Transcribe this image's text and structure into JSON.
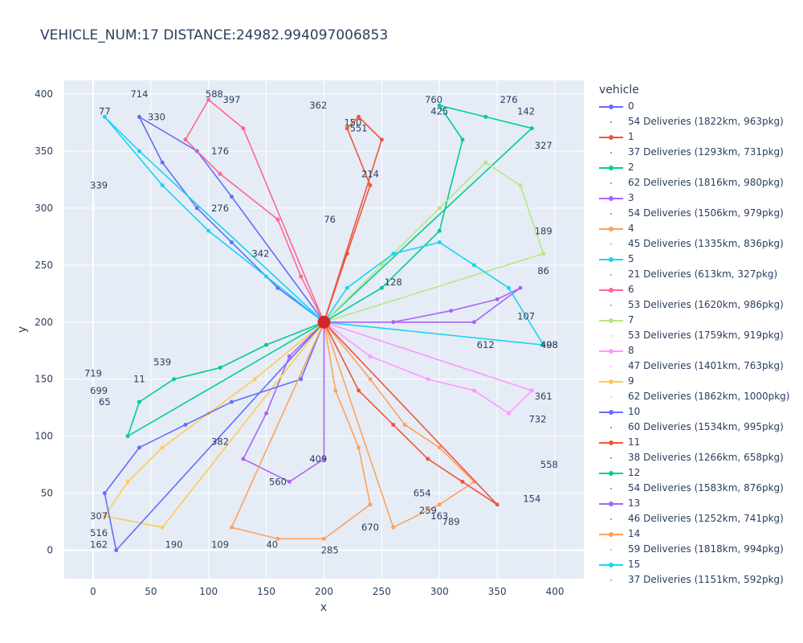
{
  "title": "VEHICLE_NUM:17 DISTANCE:24982.994097006853",
  "legend": {
    "title": "vehicle",
    "entries": [
      {
        "label": "0",
        "kind": "line",
        "color": "#636efa"
      },
      {
        "label": "54 Deliveries (1822km, 963pkg)",
        "kind": "dot",
        "color": "#636efa"
      },
      {
        "label": "1",
        "kind": "line",
        "color": "#ef553b"
      },
      {
        "label": "37 Deliveries (1293km, 731pkg)",
        "kind": "dot",
        "color": "#ef553b"
      },
      {
        "label": "2",
        "kind": "line",
        "color": "#00cc96"
      },
      {
        "label": "62 Deliveries (1816km, 980pkg)",
        "kind": "dot",
        "color": "#00cc96"
      },
      {
        "label": "3",
        "kind": "line",
        "color": "#ab63fa"
      },
      {
        "label": "54 Deliveries (1506km, 979pkg)",
        "kind": "dot",
        "color": "#ab63fa"
      },
      {
        "label": "4",
        "kind": "line",
        "color": "#ffa15a"
      },
      {
        "label": "45 Deliveries (1335km, 836pkg)",
        "kind": "dot",
        "color": "#ffa15a"
      },
      {
        "label": "5",
        "kind": "line",
        "color": "#19d3f3"
      },
      {
        "label": "21 Deliveries (613km, 327pkg)",
        "kind": "dot",
        "color": "#19d3f3"
      },
      {
        "label": "6",
        "kind": "line",
        "color": "#ff6692"
      },
      {
        "label": "53 Deliveries (1620km, 986pkg)",
        "kind": "dot",
        "color": "#ff6692"
      },
      {
        "label": "7",
        "kind": "line",
        "color": "#b6e880"
      },
      {
        "label": "53 Deliveries (1759km, 919pkg)",
        "kind": "dot",
        "color": "#b6e880"
      },
      {
        "label": "8",
        "kind": "line",
        "color": "#ff97ff"
      },
      {
        "label": "47 Deliveries (1401km, 763pkg)",
        "kind": "dot",
        "color": "#ff97ff"
      },
      {
        "label": "9",
        "kind": "line",
        "color": "#fecb52"
      },
      {
        "label": "62 Deliveries (1862km, 1000pkg)",
        "kind": "dot",
        "color": "#fecb52"
      },
      {
        "label": "10",
        "kind": "line",
        "color": "#636efa"
      },
      {
        "label": "60 Deliveries (1534km, 995pkg)",
        "kind": "dot",
        "color": "#636efa"
      },
      {
        "label": "11",
        "kind": "line",
        "color": "#ef553b"
      },
      {
        "label": "38 Deliveries (1266km, 658pkg)",
        "kind": "dot",
        "color": "#ef553b"
      },
      {
        "label": "12",
        "kind": "line",
        "color": "#00cc96"
      },
      {
        "label": "54 Deliveries (1583km, 876pkg)",
        "kind": "dot",
        "color": "#00cc96"
      },
      {
        "label": "13",
        "kind": "line",
        "color": "#ab63fa"
      },
      {
        "label": "46 Deliveries (1252km, 741pkg)",
        "kind": "dot",
        "color": "#ab63fa"
      },
      {
        "label": "14",
        "kind": "line",
        "color": "#ffa15a"
      },
      {
        "label": "59 Deliveries (1818km, 994pkg)",
        "kind": "dot",
        "color": "#ffa15a"
      },
      {
        "label": "15",
        "kind": "line",
        "color": "#19d3f3"
      },
      {
        "label": "37 Deliveries (1151km, 592pkg)",
        "kind": "dot",
        "color": "#19d3f3"
      }
    ]
  },
  "chart_data": {
    "type": "line",
    "xlabel": "x",
    "ylabel": "y",
    "xlim": [
      -25,
      425
    ],
    "ylim": [
      -25,
      412
    ],
    "x_ticks": [
      0,
      50,
      100,
      150,
      200,
      250,
      300,
      350,
      400
    ],
    "y_ticks": [
      0,
      50,
      100,
      150,
      200,
      250,
      300,
      350,
      400
    ],
    "grid": true,
    "depot": [
      200,
      200
    ],
    "series": [
      {
        "name": "0",
        "color": "#636efa",
        "points": [
          [
            200,
            200
          ],
          [
            160,
            230
          ],
          [
            120,
            270
          ],
          [
            90,
            300
          ],
          [
            60,
            340
          ],
          [
            40,
            380
          ],
          [
            90,
            350
          ],
          [
            120,
            310
          ],
          [
            200,
            200
          ]
        ],
        "labels": [
          [
            "714",
            40,
            400
          ],
          [
            "330",
            55,
            380
          ],
          [
            "276",
            110,
            300
          ],
          [
            "342",
            145,
            260
          ]
        ]
      },
      {
        "name": "1",
        "color": "#ef553b",
        "points": [
          [
            200,
            200
          ],
          [
            220,
            260
          ],
          [
            240,
            320
          ],
          [
            220,
            370
          ],
          [
            230,
            380
          ],
          [
            250,
            360
          ],
          [
            200,
            200
          ]
        ],
        "labels": [
          [
            "150",
            225,
            375
          ],
          [
            "551",
            230,
            370
          ],
          [
            "76",
            205,
            290
          ],
          [
            "214",
            240,
            330
          ]
        ]
      },
      {
        "name": "2",
        "color": "#00cc96",
        "points": [
          [
            200,
            200
          ],
          [
            250,
            230
          ],
          [
            300,
            280
          ],
          [
            320,
            360
          ],
          [
            300,
            390
          ],
          [
            340,
            380
          ],
          [
            380,
            370
          ],
          [
            200,
            200
          ]
        ],
        "labels": [
          [
            "760",
            295,
            395
          ],
          [
            "425",
            300,
            385
          ],
          [
            "276",
            360,
            395
          ],
          [
            "142",
            375,
            385
          ]
        ]
      },
      {
        "name": "3",
        "color": "#ab63fa",
        "points": [
          [
            200,
            200
          ],
          [
            170,
            170
          ],
          [
            150,
            120
          ],
          [
            130,
            80
          ],
          [
            170,
            60
          ],
          [
            200,
            80
          ],
          [
            200,
            200
          ]
        ],
        "labels": [
          [
            "409",
            195,
            80
          ],
          [
            "560",
            160,
            60
          ],
          [
            "382",
            110,
            95
          ]
        ]
      },
      {
        "name": "4",
        "color": "#ffa15a",
        "points": [
          [
            200,
            200
          ],
          [
            240,
            150
          ],
          [
            270,
            110
          ],
          [
            300,
            90
          ],
          [
            330,
            60
          ],
          [
            300,
            40
          ],
          [
            260,
            20
          ],
          [
            200,
            200
          ]
        ],
        "labels": [
          [
            "654",
            285,
            50
          ],
          [
            "259",
            290,
            35
          ],
          [
            "163",
            300,
            30
          ],
          [
            "789",
            310,
            25
          ]
        ]
      },
      {
        "name": "5",
        "color": "#19d3f3",
        "points": [
          [
            200,
            200
          ],
          [
            150,
            240
          ],
          [
            100,
            280
          ],
          [
            60,
            320
          ],
          [
            10,
            380
          ],
          [
            40,
            350
          ],
          [
            200,
            200
          ]
        ],
        "labels": [
          [
            "77",
            10,
            385
          ],
          [
            "339",
            5,
            320
          ]
        ]
      },
      {
        "name": "6",
        "color": "#ff6692",
        "points": [
          [
            200,
            200
          ],
          [
            180,
            240
          ],
          [
            160,
            290
          ],
          [
            110,
            330
          ],
          [
            80,
            360
          ],
          [
            100,
            395
          ],
          [
            130,
            370
          ],
          [
            200,
            200
          ]
        ],
        "labels": [
          [
            "588",
            105,
            400
          ],
          [
            "397",
            120,
            395
          ],
          [
            "176",
            110,
            350
          ]
        ]
      },
      {
        "name": "7",
        "color": "#b6e880",
        "points": [
          [
            200,
            200
          ],
          [
            250,
            250
          ],
          [
            300,
            300
          ],
          [
            340,
            340
          ],
          [
            370,
            320
          ],
          [
            390,
            260
          ],
          [
            200,
            200
          ]
        ],
        "labels": [
          [
            "362",
            195,
            390
          ],
          [
            "327",
            390,
            355
          ],
          [
            "189",
            390,
            280
          ],
          [
            "86",
            390,
            245
          ]
        ]
      },
      {
        "name": "8",
        "color": "#ff97ff",
        "points": [
          [
            200,
            200
          ],
          [
            240,
            170
          ],
          [
            290,
            150
          ],
          [
            330,
            140
          ],
          [
            360,
            120
          ],
          [
            380,
            140
          ],
          [
            200,
            200
          ]
        ],
        "labels": [
          [
            "498",
            395,
            180
          ],
          [
            "361",
            390,
            135
          ],
          [
            "732",
            385,
            115
          ]
        ]
      },
      {
        "name": "9",
        "color": "#fecb52",
        "points": [
          [
            200,
            200
          ],
          [
            140,
            150
          ],
          [
            100,
            120
          ],
          [
            60,
            90
          ],
          [
            30,
            60
          ],
          [
            10,
            30
          ],
          [
            60,
            20
          ],
          [
            200,
            200
          ]
        ],
        "labels": [
          [
            "699",
            5,
            140
          ],
          [
            "65",
            10,
            130
          ],
          [
            "307",
            5,
            30
          ],
          [
            "516",
            5,
            15
          ]
        ]
      },
      {
        "name": "10",
        "color": "#636efa",
        "points": [
          [
            200,
            200
          ],
          [
            180,
            150
          ],
          [
            120,
            130
          ],
          [
            80,
            110
          ],
          [
            40,
            90
          ],
          [
            10,
            50
          ],
          [
            20,
            0
          ],
          [
            200,
            200
          ]
        ],
        "labels": [
          [
            "719",
            0,
            155
          ],
          [
            "162",
            5,
            5
          ],
          [
            "190",
            70,
            5
          ]
        ]
      },
      {
        "name": "11",
        "color": "#ef553b",
        "points": [
          [
            200,
            200
          ],
          [
            230,
            140
          ],
          [
            260,
            110
          ],
          [
            290,
            80
          ],
          [
            320,
            60
          ],
          [
            350,
            40
          ],
          [
            200,
            200
          ]
        ],
        "labels": [
          [
            "558",
            395,
            75
          ],
          [
            "154",
            380,
            45
          ]
        ]
      },
      {
        "name": "12",
        "color": "#00cc96",
        "points": [
          [
            200,
            200
          ],
          [
            150,
            180
          ],
          [
            110,
            160
          ],
          [
            70,
            150
          ],
          [
            40,
            130
          ],
          [
            30,
            100
          ],
          [
            200,
            200
          ]
        ],
        "labels": [
          [
            "11",
            40,
            150
          ],
          [
            "539",
            60,
            165
          ]
        ]
      },
      {
        "name": "13",
        "color": "#ab63fa",
        "points": [
          [
            200,
            200
          ],
          [
            260,
            200
          ],
          [
            310,
            210
          ],
          [
            350,
            220
          ],
          [
            370,
            230
          ],
          [
            330,
            200
          ],
          [
            200,
            200
          ]
        ],
        "labels": [
          [
            "107",
            375,
            205
          ],
          [
            "612",
            340,
            180
          ]
        ]
      },
      {
        "name": "14",
        "color": "#ffa15a",
        "points": [
          [
            200,
            200
          ],
          [
            210,
            140
          ],
          [
            230,
            90
          ],
          [
            240,
            40
          ],
          [
            200,
            10
          ],
          [
            160,
            10
          ],
          [
            120,
            20
          ],
          [
            200,
            200
          ]
        ],
        "labels": [
          [
            "285",
            205,
            0
          ],
          [
            "670",
            240,
            20
          ],
          [
            "40",
            155,
            5
          ],
          [
            "109",
            110,
            5
          ]
        ]
      },
      {
        "name": "15",
        "color": "#19d3f3",
        "points": [
          [
            200,
            200
          ],
          [
            220,
            230
          ],
          [
            260,
            260
          ],
          [
            300,
            270
          ],
          [
            330,
            250
          ],
          [
            360,
            230
          ],
          [
            390,
            180
          ],
          [
            200,
            200
          ]
        ],
        "labels": [
          [
            "408",
            395,
            180
          ],
          [
            "128",
            260,
            235
          ]
        ]
      }
    ]
  }
}
